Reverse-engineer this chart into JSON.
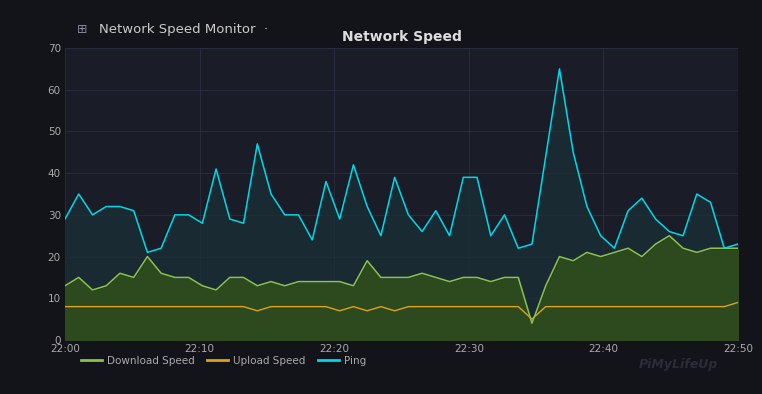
{
  "title": "Network Speed",
  "chart_bg": "#1c1e2a",
  "grid_color": "#2e3248",
  "text_color": "#aaaaaa",
  "title_color": "#dddddd",
  "ylim": [
    0,
    70
  ],
  "yticks": [
    0,
    10,
    20,
    30,
    40,
    50,
    60,
    70
  ],
  "xtick_labels": [
    "22:00",
    "22:10",
    "22:20",
    "22:30",
    "22:40",
    "22:50"
  ],
  "download_color": "#8bc34a",
  "upload_color": "#e0a020",
  "ping_color": "#00d8e8",
  "download_fill": "#2d4a1e",
  "upload_fill": "#3a2e08",
  "ping_fill": "#1a3038",
  "sidebar_bg": "#0e0e12",
  "main_bg": "#13131a",
  "header_bg": "#13131a",
  "chart_panel_bg": "#1a1c28",
  "bottom_bg": "#13131a",
  "download_speed": [
    13,
    15,
    12,
    13,
    16,
    15,
    20,
    16,
    15,
    15,
    13,
    12,
    15,
    15,
    13,
    14,
    13,
    14,
    14,
    14,
    14,
    13,
    19,
    15,
    15,
    15,
    16,
    15,
    14,
    15,
    15,
    14,
    15,
    15,
    4,
    13,
    20,
    19,
    21,
    20,
    21,
    22,
    20,
    23,
    25,
    22,
    21,
    22,
    22,
    22
  ],
  "upload_speed": [
    8,
    8,
    8,
    8,
    8,
    8,
    8,
    8,
    8,
    8,
    8,
    8,
    8,
    8,
    7,
    8,
    8,
    8,
    8,
    8,
    7,
    8,
    7,
    8,
    7,
    8,
    8,
    8,
    8,
    8,
    8,
    8,
    8,
    8,
    5,
    8,
    8,
    8,
    8,
    8,
    8,
    8,
    8,
    8,
    8,
    8,
    8,
    8,
    8,
    9
  ],
  "ping": [
    29,
    35,
    30,
    32,
    32,
    31,
    21,
    22,
    30,
    30,
    28,
    41,
    29,
    28,
    47,
    35,
    30,
    30,
    24,
    38,
    29,
    42,
    32,
    25,
    39,
    30,
    26,
    31,
    25,
    39,
    39,
    25,
    30,
    22,
    23,
    44,
    65,
    45,
    32,
    25,
    22,
    31,
    34,
    29,
    26,
    25,
    35,
    33,
    22,
    23
  ],
  "watermark_color": "#2a2c3a",
  "legend_label_color": "#aaaaaa",
  "header_text_color": "#cccccc",
  "header_icon_color": "#888899"
}
